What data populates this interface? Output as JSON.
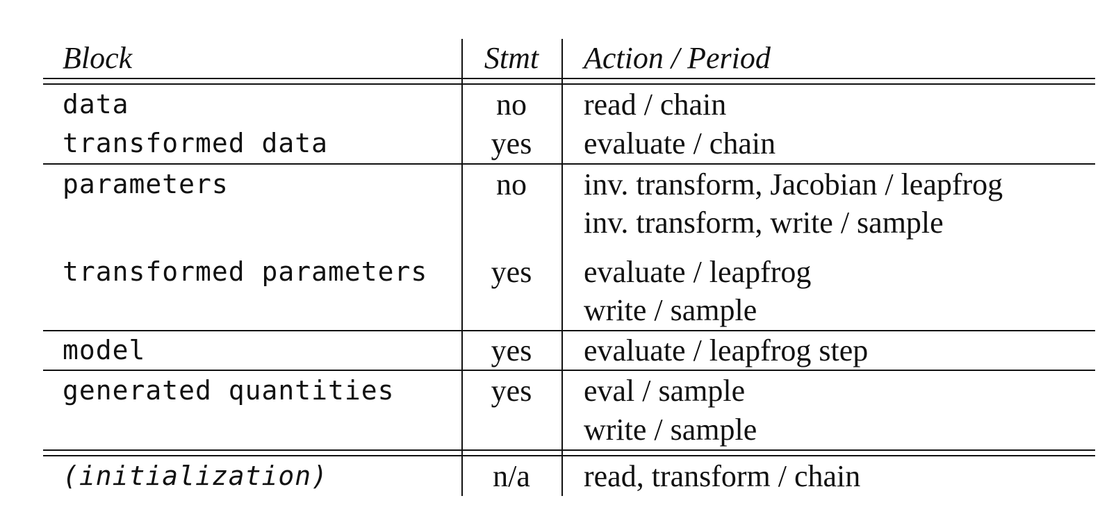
{
  "table": {
    "headers": {
      "block": "Block",
      "stmt": "Stmt",
      "action_period": "Action / Period"
    },
    "rows": [
      {
        "block": "data",
        "stmt": "no",
        "actions": [
          "read / chain"
        ]
      },
      {
        "block": "transformed data",
        "stmt": "yes",
        "actions": [
          "evaluate / chain"
        ]
      },
      {
        "block": "parameters",
        "stmt": "no",
        "actions": [
          "inv. transform, Jacobian / leapfrog",
          "inv. transform, write / sample"
        ]
      },
      {
        "block": "transformed parameters",
        "stmt": "yes",
        "actions": [
          "evaluate / leapfrog",
          "write / sample"
        ]
      },
      {
        "block": "model",
        "stmt": "yes",
        "actions": [
          "evaluate / leapfrog step"
        ]
      },
      {
        "block": "generated quantities",
        "stmt": "yes",
        "actions": [
          "eval / sample",
          "write / sample"
        ]
      },
      {
        "block": "(initialization)",
        "stmt": "n/a",
        "actions": [
          "read, transform / chain"
        ]
      }
    ]
  }
}
